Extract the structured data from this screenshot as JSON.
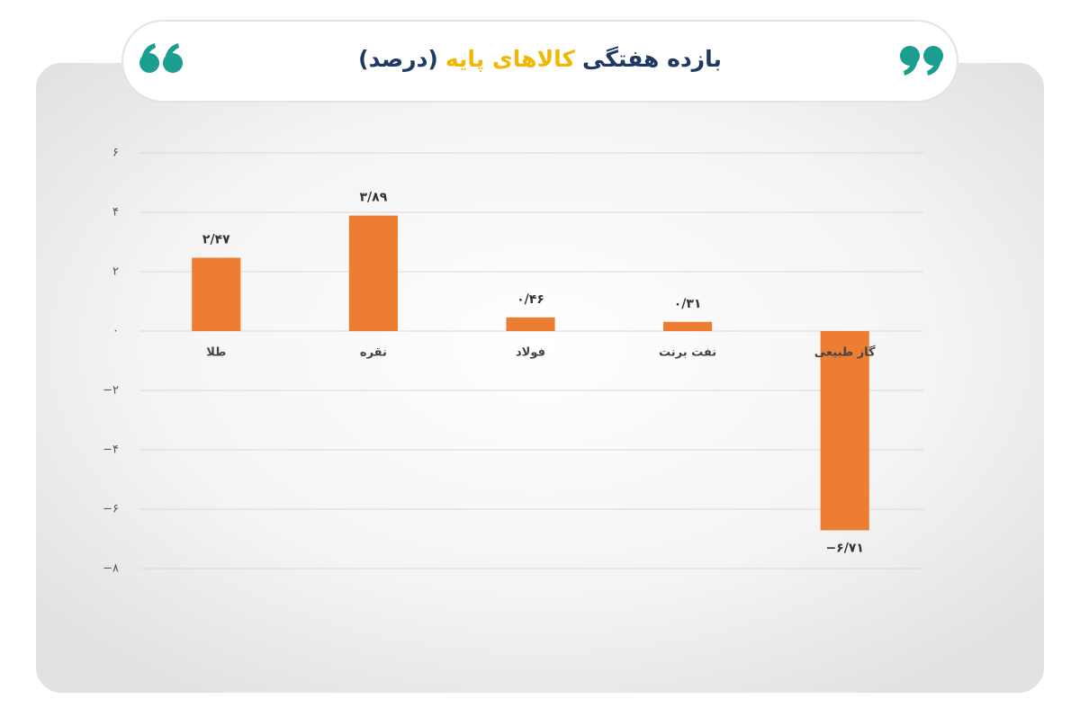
{
  "chart_data": {
    "type": "bar",
    "title": [
      "بازده هفتگی",
      "کالاهای پایه",
      "(درصد)"
    ],
    "categories": [
      "طلا",
      "نقره",
      "فولاد",
      "نفت برنت",
      "گاز طبیعی"
    ],
    "values": [
      2.47,
      3.89,
      0.46,
      0.31,
      -6.71
    ],
    "value_labels": [
      "۲/۴۷",
      "۳/۸۹",
      "۰/۴۶",
      "۰/۳۱",
      "−۶/۷۱"
    ],
    "color": "#ed7d31",
    "ylim": [
      -8,
      6
    ],
    "yticks": [
      {
        "value": 6,
        "label": "۶"
      },
      {
        "value": 4,
        "label": "۴"
      },
      {
        "value": 2,
        "label": "۲"
      },
      {
        "value": 0,
        "label": "۰"
      },
      {
        "value": -2,
        "label": "−۲"
      },
      {
        "value": -4,
        "label": "−۴"
      },
      {
        "value": -6,
        "label": "−۶"
      },
      {
        "value": -8,
        "label": "−۸"
      }
    ],
    "grid": true
  }
}
